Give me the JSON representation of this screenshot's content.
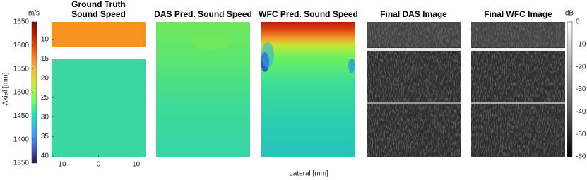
{
  "chart_data": [
    {
      "type": "colorbar",
      "label": "m/s",
      "colormap": "turbo",
      "side": "left",
      "ylim": [
        1350,
        1650
      ],
      "yticks": [
        1350,
        1400,
        1450,
        1500,
        1550,
        1600,
        1650
      ]
    },
    {
      "type": "image",
      "title": [
        "Ground Truth",
        "Sound Speed"
      ],
      "xlabel": "Lateral [mm]",
      "ylabel": "Axial [mm]",
      "xlim": [
        -12.5,
        12.5
      ],
      "xticks": [
        -10,
        0,
        10
      ],
      "ylim": [
        5.5,
        40.2
      ],
      "y_reversed": true,
      "yticks": [
        10,
        15,
        20,
        25,
        30,
        35,
        40
      ]
    },
    {
      "type": "image",
      "title": [
        "DAS Pred. Sound Speed"
      ]
    },
    {
      "type": "image",
      "title": [
        "WFC Pred. Sound Speed"
      ]
    },
    {
      "type": "image",
      "title": [
        "Final DAS Image"
      ]
    },
    {
      "type": "image",
      "title": [
        "Final WFC Image"
      ]
    },
    {
      "type": "colorbar",
      "label": "dB",
      "colormap": "gray",
      "side": "right",
      "ylim": [
        -60,
        0
      ],
      "yticks": [
        -60,
        -50,
        -40,
        -30,
        -20,
        -10,
        0
      ]
    }
  ]
}
